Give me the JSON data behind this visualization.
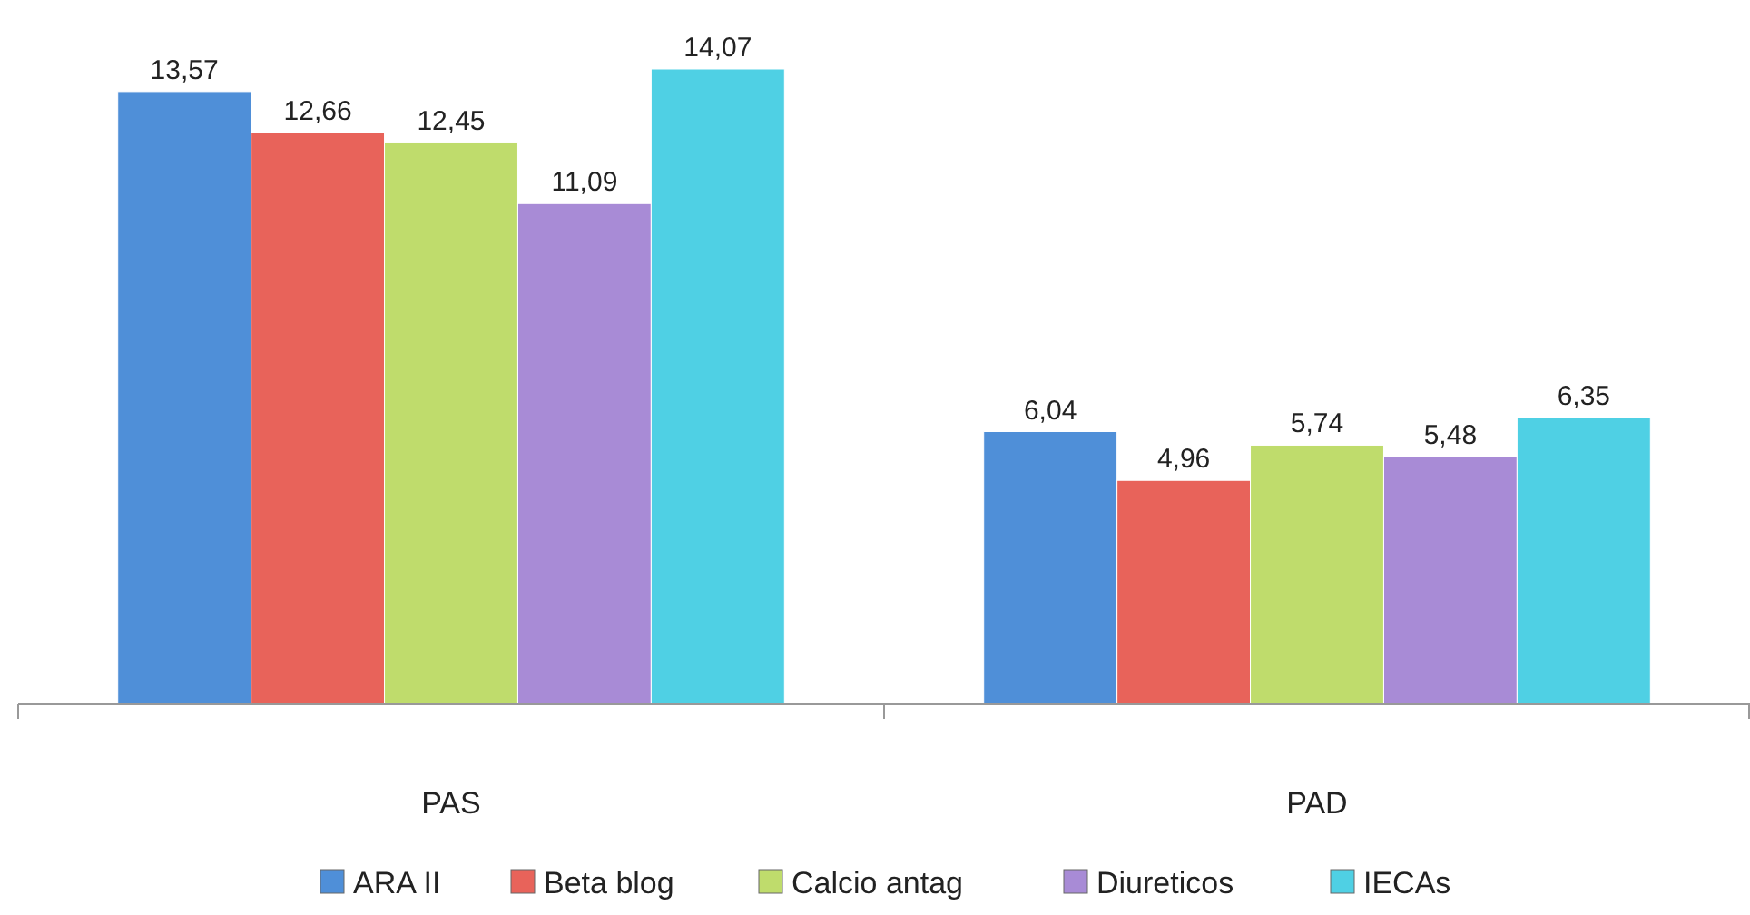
{
  "chart_data": {
    "type": "bar",
    "categories": [
      "PAS",
      "PAD"
    ],
    "series": [
      {
        "name": "ARA II",
        "color": "#4f8fd8",
        "values": [
          13.57,
          6.04
        ],
        "value_labels": [
          "13,57",
          "6,04"
        ]
      },
      {
        "name": "Beta blog",
        "color": "#e8635a",
        "values": [
          12.66,
          4.96
        ],
        "value_labels": [
          "12,66",
          "4,96"
        ]
      },
      {
        "name": "Calcio antag",
        "color": "#bfdc6c",
        "values": [
          12.45,
          5.74
        ],
        "value_labels": [
          "12,45",
          "5,74"
        ]
      },
      {
        "name": "Diureticos",
        "color": "#a88bd6",
        "values": [
          11.09,
          5.48
        ],
        "value_labels": [
          "11,09",
          "5,48"
        ]
      },
      {
        "name": "IECAs",
        "color": "#4fd0e4",
        "values": [
          14.07,
          6.35
        ],
        "value_labels": [
          "14,07",
          "6,35"
        ]
      }
    ],
    "legend": "bottom",
    "tick_labels": "x"
  }
}
